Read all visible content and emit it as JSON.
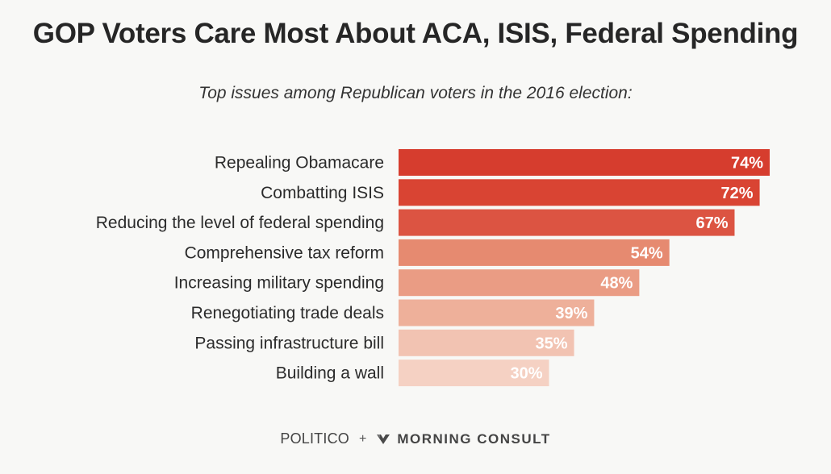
{
  "title": "GOP Voters Care Most About ACA, ISIS, Federal Spending",
  "subtitle": "Top issues among Republican voters in the 2016 election:",
  "footer": {
    "source1": "POLITICO",
    "separator": "+",
    "source2": "MORNING CONSULT",
    "source2_icon": "m-logo-icon"
  },
  "colors": {
    "background": "#f8f8f6",
    "bar_scale": [
      "#d63d2e",
      "#d94433",
      "#dc5442",
      "#e68a70",
      "#ea9c84",
      "#eeb09a",
      "#f2c3b2",
      "#f5d1c3"
    ]
  },
  "chart_data": {
    "type": "bar",
    "orientation": "horizontal",
    "title": "GOP Voters Care Most About ACA, ISIS, Federal Spending",
    "subtitle": "Top issues among Republican voters in the 2016 election:",
    "categories": [
      "Repealing Obamacare",
      "Combatting ISIS",
      "Reducing the level of federal spending",
      "Comprehensive tax reform",
      "Increasing military spending",
      "Renegotiating trade deals",
      "Passing infrastructure bill",
      "Building a wall"
    ],
    "values": [
      74,
      72,
      67,
      54,
      48,
      39,
      35,
      30
    ],
    "value_labels": [
      "74%",
      "72%",
      "67%",
      "54%",
      "48%",
      "39%",
      "35%",
      "30%"
    ],
    "xlim": [
      0,
      74
    ],
    "xlabel": "",
    "ylabel": "",
    "grid": false,
    "legend": "none"
  }
}
